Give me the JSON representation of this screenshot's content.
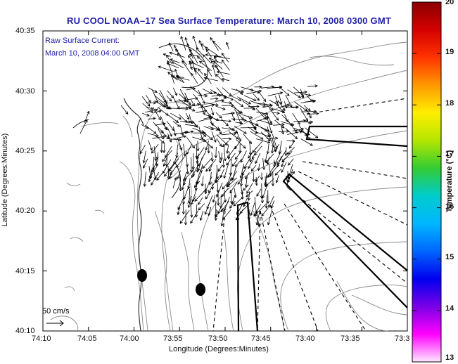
{
  "title": "RU COOL  NOAA–17  Sea Surface Temperature:  March 10, 2008 0300 GMT",
  "annotation_line1": "Raw Surface Current:",
  "annotation_line2": "March 10, 2008 04:00 GMT",
  "scale_label": "50 cm/s",
  "x_axis": {
    "label": "Longitude (Degrees:Minutes)",
    "ticks": [
      "74:10",
      "74:05",
      "74:00",
      "73:55",
      "73:50",
      "73:45",
      "73:40",
      "73:35",
      "73:3"
    ]
  },
  "y_axis": {
    "label": "Latitude (Degrees:Minutes)",
    "ticks": [
      "40:35",
      "40:30",
      "40:25",
      "40:20",
      "40:15",
      "40:10"
    ]
  },
  "colorbar": {
    "label": "Temperature (°C)",
    "ticks": [
      "20",
      "19",
      "18",
      "17",
      "16",
      "15",
      "14",
      "13"
    ],
    "colors": [
      "#8b0000",
      "#d40000",
      "#ff3300",
      "#ff9900",
      "#ffee00",
      "#b4e600",
      "#33cc33",
      "#00cccc",
      "#00b7ff",
      "#0066ff",
      "#0000ee",
      "#7a00e6",
      "#ff00ff",
      "#ffe6ff"
    ]
  }
}
